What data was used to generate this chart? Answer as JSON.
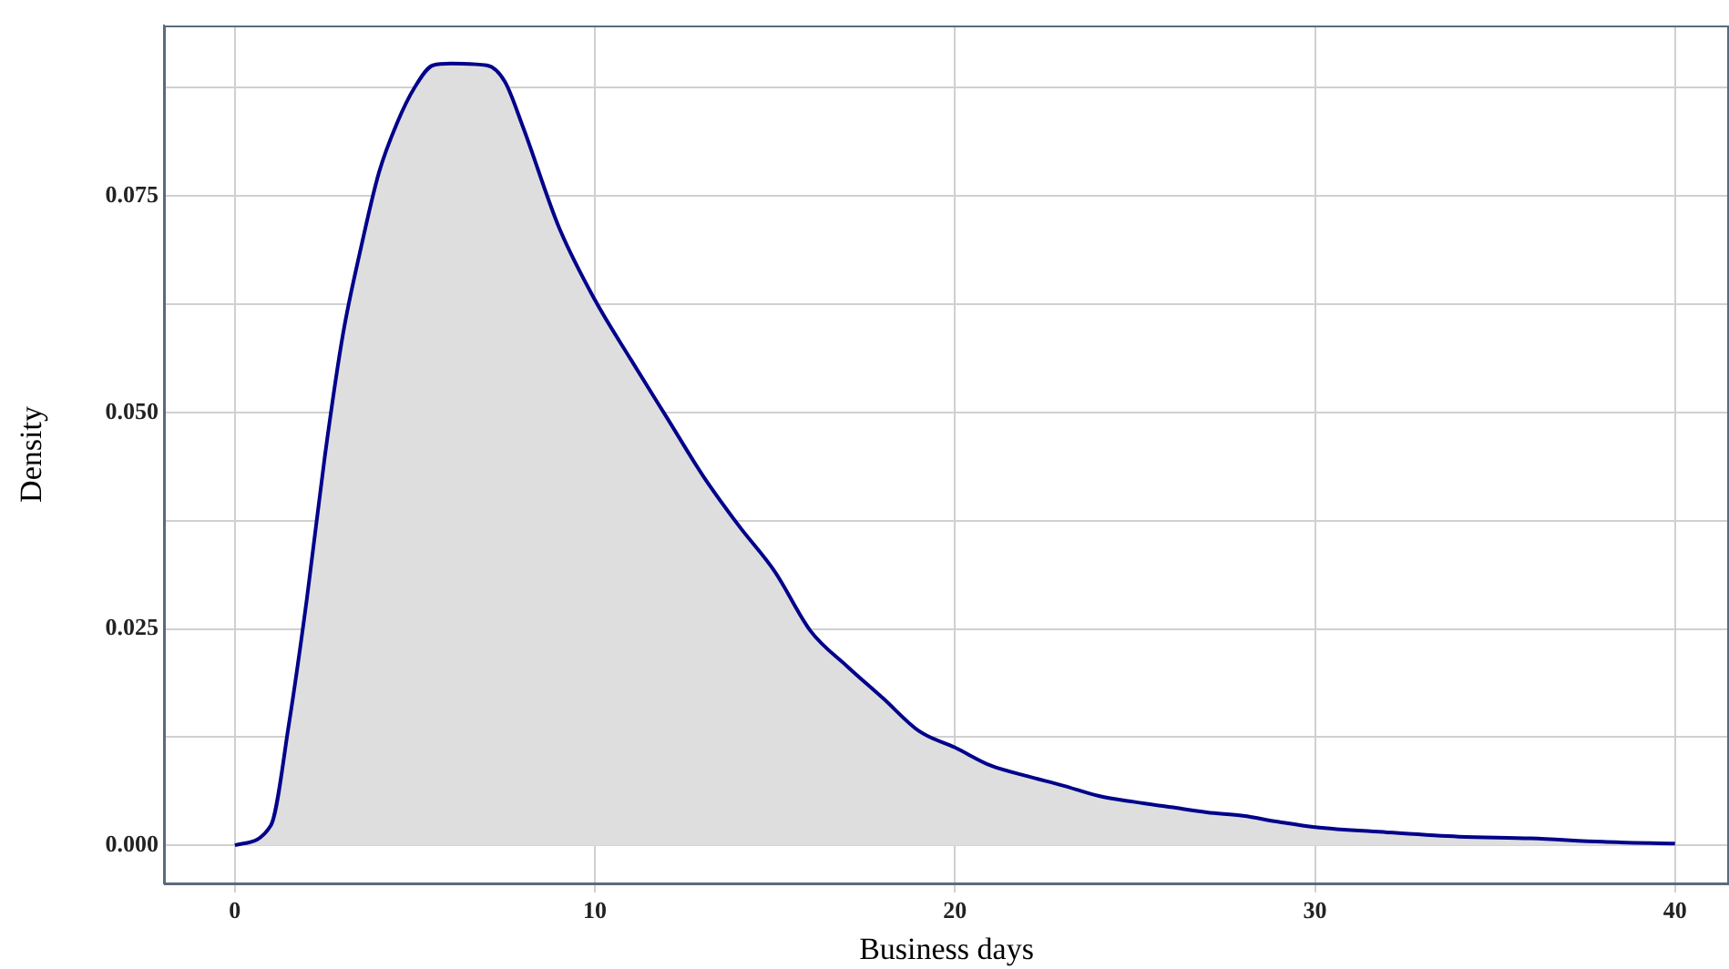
{
  "chart_data": {
    "type": "area",
    "xlabel": "Business days",
    "ylabel": "Density",
    "x": [
      0,
      1,
      1.5,
      2,
      2.5,
      3,
      3.5,
      4,
      4.5,
      5,
      5.5,
      6,
      7,
      7.5,
      8,
      9,
      10,
      11,
      12,
      13,
      14,
      15,
      16,
      17,
      18,
      19,
      20,
      21,
      22,
      23,
      24,
      25,
      26,
      27,
      28,
      29,
      30,
      32,
      34,
      36,
      38,
      40
    ],
    "series": [
      {
        "color": "#00008b",
        "values": [
          0,
          0.0023,
          0.014,
          0.0285,
          0.045,
          0.059,
          0.069,
          0.0777,
          0.0834,
          0.0876,
          0.0901,
          0.0903,
          0.0901,
          0.0882,
          0.083,
          0.0714,
          0.063,
          0.0561,
          0.0494,
          0.0427,
          0.0369,
          0.0316,
          0.0247,
          0.0207,
          0.017,
          0.0132,
          0.0113,
          0.0092,
          0.008,
          0.0069,
          0.0057,
          0.005,
          0.0044,
          0.0038,
          0.0034,
          0.0027,
          0.0021,
          0.0015,
          0.001,
          0.0008,
          0.0004,
          0.0002
        ]
      }
    ],
    "xlim": [
      -1.97,
      41.5
    ],
    "xticks": [
      0,
      10,
      20,
      30,
      40
    ],
    "ylim": [
      -0.0044,
      0.0947
    ],
    "yticks": [
      {
        "value": 0,
        "label": "0.000"
      },
      {
        "value": 0.0125,
        "label": null
      },
      {
        "value": 0.025,
        "label": "0.025"
      },
      {
        "value": 0.0375,
        "label": null
      },
      {
        "value": 0.05,
        "label": "0.050"
      },
      {
        "value": 0.0625,
        "label": null
      },
      {
        "value": 0.075,
        "label": "0.075"
      },
      {
        "value": 0.0875,
        "label": null
      }
    ],
    "grid": true,
    "legend": false,
    "marker": "none",
    "line_style": "solid"
  }
}
